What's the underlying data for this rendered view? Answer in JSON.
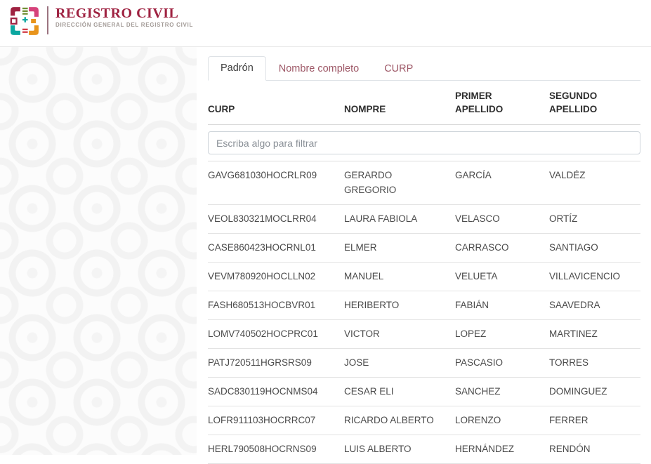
{
  "header": {
    "title": "REGISTRO CIVIL",
    "subtitle": "DIRECCIÓN GENERAL DEL REGISTRO CIVIL",
    "logo": "registro-civil-emblem"
  },
  "tabs": [
    {
      "label": "Padrón",
      "active": true
    },
    {
      "label": "Nombre completo",
      "active": false
    },
    {
      "label": "CURP",
      "active": false
    }
  ],
  "table": {
    "columns": [
      "CURP",
      "NOMPRE",
      "PRIMER APELLIDO",
      "SEGUNDO APELLIDO"
    ],
    "filter_placeholder": "Escriba algo para filtrar",
    "filter_value": "",
    "rows": [
      [
        "GAVG681030HOCRLR09",
        "GERARDO GREGORIO",
        "GARCÍA",
        "VALDÉZ"
      ],
      [
        "VEOL830321MOCLRR04",
        "LAURA FABIOLA",
        "VELASCO",
        "ORTÍZ"
      ],
      [
        "CASE860423HOCRNL01",
        "ELMER",
        "CARRASCO",
        "SANTIAGO"
      ],
      [
        "VEVM780920HOCLLN02",
        "MANUEL",
        "VELUETA",
        "VILLAVICENCIO"
      ],
      [
        "FASH680513HOCBVR01",
        "HERIBERTO",
        "FABIÁN",
        "SAAVEDRA"
      ],
      [
        "LOMV740502HOCPRC01",
        "VICTOR",
        "LOPEZ",
        "MARTINEZ"
      ],
      [
        "PATJ720511HGRSRS09",
        "JOSE",
        "PASCASIO",
        "TORRES"
      ],
      [
        "SADC830119HOCNMS04",
        "CESAR ELI",
        "SANCHEZ",
        "DOMINGUEZ"
      ],
      [
        "LOFR911103HOCRRC07",
        "RICARDO ALBERTO",
        "LORENZO",
        "FERRER"
      ],
      [
        "HERL790508HOCRNS09",
        "LUIS ALBERTO",
        "HERNÁNDEZ",
        "RENDÓN"
      ]
    ]
  },
  "colors": {
    "brand_maroon": "#9f2241",
    "tab_inactive_link": "#9d5766",
    "teal": "#0ba7a0",
    "green": "#708f34",
    "pink": "#d6437b",
    "orange": "#e8941c",
    "red": "#d23c46",
    "border_light": "#dee2e6",
    "text_dark": "#3f3f3f"
  }
}
